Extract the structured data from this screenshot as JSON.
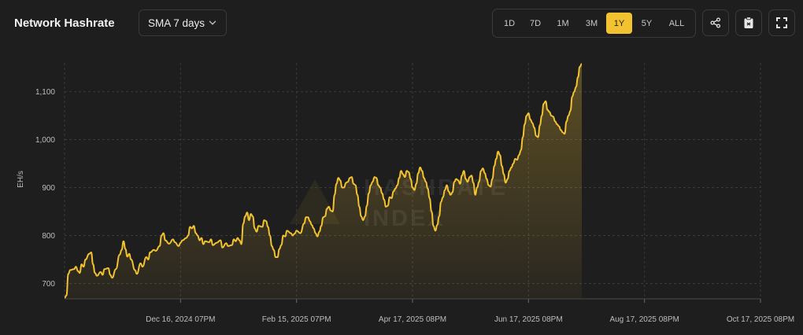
{
  "header": {
    "title": "Network Hashrate",
    "sma_label": "SMA 7 days",
    "ranges": [
      "1D",
      "7D",
      "1M",
      "3M",
      "1Y",
      "5Y",
      "ALL"
    ],
    "active_range": "1Y",
    "accent": "#f2c230"
  },
  "icons": [
    "share-icon",
    "clipboard-icon",
    "fullscreen-icon",
    "chevron-down-icon"
  ],
  "watermark": {
    "line1": "HASHRATE",
    "line2": "INDEX"
  },
  "chart_data": {
    "type": "area",
    "title": "Network Hashrate",
    "ylabel": "EH/s",
    "xlabel": "",
    "ylim": [
      668,
      1160
    ],
    "yticks": [
      700,
      800,
      900,
      1000,
      1100
    ],
    "ytick_labels": [
      "700",
      "800",
      "900",
      "1,000",
      "1,100"
    ],
    "xticks": [
      "Dec 16, 2024 07PM",
      "Feb 15, 2025 07PM",
      "Apr 17, 2025 08PM",
      "Jun 17, 2025 08PM",
      "Aug 17, 2025 08PM",
      "Oct 17, 2025 08PM"
    ],
    "xtick_days": [
      61,
      122,
      183,
      244,
      305,
      366
    ],
    "x_range_days": [
      0,
      366
    ],
    "grid": true,
    "color": "#f2c230",
    "series": [
      {
        "points": [
          [
            0,
            670
          ],
          [
            1,
            675
          ],
          [
            2,
            720
          ],
          [
            3,
            728
          ],
          [
            5,
            730
          ],
          [
            6,
            735
          ],
          [
            7,
            726
          ],
          [
            8,
            722
          ],
          [
            9,
            740
          ],
          [
            10,
            735
          ],
          [
            11,
            750
          ],
          [
            13,
            762
          ],
          [
            14,
            765
          ],
          [
            15,
            740
          ],
          [
            16,
            722
          ],
          [
            17,
            716
          ],
          [
            19,
            724
          ],
          [
            20,
            718
          ],
          [
            21,
            730
          ],
          [
            23,
            732
          ],
          [
            24,
            718
          ],
          [
            25,
            712
          ],
          [
            27,
            730
          ],
          [
            29,
            760
          ],
          [
            30,
            770
          ],
          [
            31,
            788
          ],
          [
            32,
            772
          ],
          [
            33,
            756
          ],
          [
            34,
            762
          ],
          [
            35,
            750
          ],
          [
            37,
            728
          ],
          [
            38,
            720
          ],
          [
            40,
            742
          ],
          [
            41,
            735
          ],
          [
            43,
            755
          ],
          [
            44,
            750
          ],
          [
            45,
            765
          ],
          [
            47,
            770
          ],
          [
            48,
            768
          ],
          [
            50,
            778
          ],
          [
            51,
            800
          ],
          [
            52,
            805
          ],
          [
            53,
            790
          ],
          [
            55,
            783
          ],
          [
            57,
            792
          ],
          [
            58,
            786
          ],
          [
            60,
            778
          ],
          [
            61,
            785
          ],
          [
            62,
            790
          ],
          [
            64,
            795
          ],
          [
            65,
            800
          ],
          [
            66,
            818
          ],
          [
            67,
            815
          ],
          [
            68,
            820
          ],
          [
            69,
            805
          ],
          [
            70,
            800
          ],
          [
            71,
            790
          ],
          [
            72,
            795
          ],
          [
            73,
            782
          ],
          [
            74,
            788
          ],
          [
            76,
            786
          ],
          [
            77,
            792
          ],
          [
            78,
            780
          ],
          [
            80,
            785
          ],
          [
            82,
            790
          ],
          [
            83,
            775
          ],
          [
            85,
            784
          ],
          [
            86,
            778
          ],
          [
            88,
            780
          ],
          [
            89,
            792
          ],
          [
            90,
            788
          ],
          [
            91,
            795
          ],
          [
            92,
            790
          ],
          [
            93,
            782
          ],
          [
            94,
            825
          ],
          [
            95,
            840
          ],
          [
            96,
            848
          ],
          [
            97,
            832
          ],
          [
            98,
            845
          ],
          [
            99,
            840
          ],
          [
            100,
            815
          ],
          [
            101,
            808
          ],
          [
            102,
            820
          ],
          [
            104,
            818
          ],
          [
            105,
            832
          ],
          [
            106,
            830
          ],
          [
            107,
            818
          ],
          [
            108,
            800
          ],
          [
            109,
            778
          ],
          [
            110,
            770
          ],
          [
            111,
            755
          ],
          [
            112,
            755
          ],
          [
            113,
            772
          ],
          [
            114,
            780
          ],
          [
            115,
            800
          ],
          [
            116,
            798
          ],
          [
            117,
            810
          ],
          [
            119,
            805
          ],
          [
            120,
            800
          ],
          [
            121,
            804
          ],
          [
            122,
            810
          ],
          [
            124,
            805
          ],
          [
            126,
            825
          ],
          [
            127,
            838
          ],
          [
            128,
            838
          ],
          [
            129,
            830
          ],
          [
            130,
            822
          ],
          [
            131,
            815
          ],
          [
            132,
            805
          ],
          [
            133,
            798
          ],
          [
            134,
            808
          ],
          [
            135,
            820
          ],
          [
            136,
            838
          ],
          [
            137,
            840
          ],
          [
            138,
            856
          ],
          [
            139,
            860
          ],
          [
            140,
            852
          ],
          [
            141,
            850
          ],
          [
            142,
            885
          ],
          [
            143,
            908
          ],
          [
            144,
            920
          ],
          [
            145,
            915
          ],
          [
            146,
            900
          ],
          [
            147,
            900
          ],
          [
            148,
            910
          ],
          [
            149,
            912
          ],
          [
            150,
            920
          ],
          [
            151,
            922
          ],
          [
            152,
            908
          ],
          [
            153,
            905
          ],
          [
            154,
            885
          ],
          [
            155,
            860
          ],
          [
            156,
            840
          ],
          [
            157,
            832
          ],
          [
            158,
            840
          ],
          [
            159,
            862
          ],
          [
            160,
            888
          ],
          [
            161,
            905
          ],
          [
            162,
            912
          ],
          [
            163,
            922
          ],
          [
            164,
            920
          ],
          [
            165,
            905
          ],
          [
            166,
            900
          ],
          [
            167,
            888
          ],
          [
            168,
            875
          ],
          [
            169,
            860
          ],
          [
            170,
            862
          ],
          [
            171,
            880
          ],
          [
            172,
            878
          ],
          [
            173,
            892
          ],
          [
            174,
            898
          ],
          [
            175,
            905
          ],
          [
            176,
            920
          ],
          [
            177,
            935
          ],
          [
            178,
            928
          ],
          [
            179,
            922
          ],
          [
            180,
            935
          ],
          [
            181,
            932
          ],
          [
            182,
            918
          ],
          [
            183,
            900
          ],
          [
            184,
            895
          ],
          [
            185,
            908
          ],
          [
            186,
            930
          ],
          [
            187,
            942
          ],
          [
            188,
            935
          ],
          [
            189,
            920
          ],
          [
            190,
            912
          ],
          [
            191,
            898
          ],
          [
            192,
            878
          ],
          [
            193,
            850
          ],
          [
            194,
            820
          ],
          [
            195,
            810
          ],
          [
            196,
            822
          ],
          [
            197,
            840
          ],
          [
            198,
            870
          ],
          [
            199,
            880
          ],
          [
            200,
            895
          ],
          [
            201,
            905
          ],
          [
            202,
            892
          ],
          [
            203,
            885
          ],
          [
            204,
            890
          ],
          [
            205,
            912
          ],
          [
            206,
            918
          ],
          [
            207,
            915
          ],
          [
            208,
            908
          ],
          [
            209,
            925
          ],
          [
            210,
            935
          ],
          [
            211,
            918
          ],
          [
            212,
            912
          ],
          [
            213,
            922
          ],
          [
            214,
            925
          ],
          [
            215,
            910
          ],
          [
            216,
            885
          ],
          [
            217,
            900
          ],
          [
            218,
            912
          ],
          [
            219,
            935
          ],
          [
            220,
            940
          ],
          [
            221,
            930
          ],
          [
            222,
            918
          ],
          [
            223,
            905
          ],
          [
            224,
            902
          ],
          [
            225,
            918
          ],
          [
            226,
            945
          ],
          [
            227,
            960
          ],
          [
            228,
            975
          ],
          [
            229,
            968
          ],
          [
            230,
            945
          ],
          [
            231,
            928
          ],
          [
            232,
            910
          ],
          [
            233,
            918
          ],
          [
            234,
            935
          ],
          [
            235,
            942
          ],
          [
            236,
            950
          ],
          [
            237,
            960
          ],
          [
            238,
            958
          ],
          [
            239,
            968
          ],
          [
            240,
            978
          ],
          [
            241,
            1005
          ],
          [
            242,
            1032
          ],
          [
            243,
            1050
          ],
          [
            244,
            1055
          ],
          [
            245,
            1042
          ],
          [
            246,
            1035
          ],
          [
            247,
            1025
          ],
          [
            248,
            1008
          ],
          [
            249,
            1005
          ],
          [
            250,
            1030
          ],
          [
            251,
            1050
          ],
          [
            252,
            1075
          ],
          [
            253,
            1080
          ],
          [
            254,
            1062
          ],
          [
            255,
            1058
          ],
          [
            256,
            1050
          ],
          [
            257,
            1048
          ],
          [
            258,
            1038
          ],
          [
            259,
            1032
          ],
          [
            260,
            1028
          ],
          [
            261,
            1020
          ],
          [
            262,
            1015
          ],
          [
            263,
            1012
          ],
          [
            264,
            1038
          ],
          [
            265,
            1050
          ],
          [
            266,
            1060
          ],
          [
            267,
            1090
          ],
          [
            268,
            1100
          ],
          [
            269,
            1110
          ],
          [
            270,
            1130
          ],
          [
            271,
            1152
          ],
          [
            272,
            1158
          ]
        ]
      }
    ]
  }
}
